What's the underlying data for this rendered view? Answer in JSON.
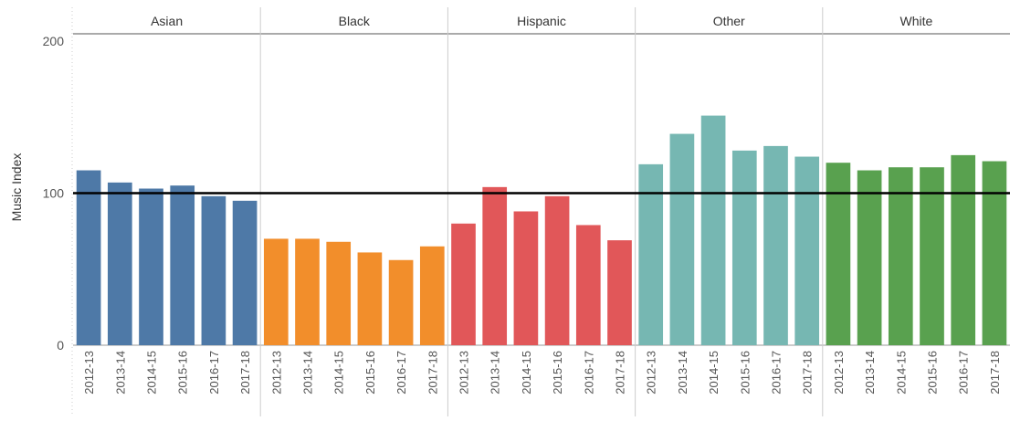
{
  "chart_data": {
    "type": "bar",
    "ylabel": "Music Index",
    "yticks": [
      0,
      100,
      200
    ],
    "ylim": [
      0,
      200
    ],
    "reference_line": 100,
    "categories": [
      "2012-13",
      "2013-14",
      "2014-15",
      "2015-16",
      "2016-17",
      "2017-18"
    ],
    "grid": false,
    "panels": [
      {
        "name": "Asian",
        "color": "#4e79a7",
        "values": [
          115,
          107,
          103,
          105,
          98,
          95
        ]
      },
      {
        "name": "Black",
        "color": "#f28e2b",
        "values": [
          70,
          70,
          68,
          61,
          56,
          65
        ]
      },
      {
        "name": "Hispanic",
        "color": "#e15759",
        "values": [
          80,
          104,
          88,
          98,
          79,
          69
        ]
      },
      {
        "name": "Other",
        "color": "#76b7b2",
        "values": [
          119,
          139,
          151,
          128,
          131,
          124
        ]
      },
      {
        "name": "White",
        "color": "#59a14f",
        "values": [
          120,
          115,
          117,
          117,
          125,
          121
        ]
      }
    ]
  }
}
